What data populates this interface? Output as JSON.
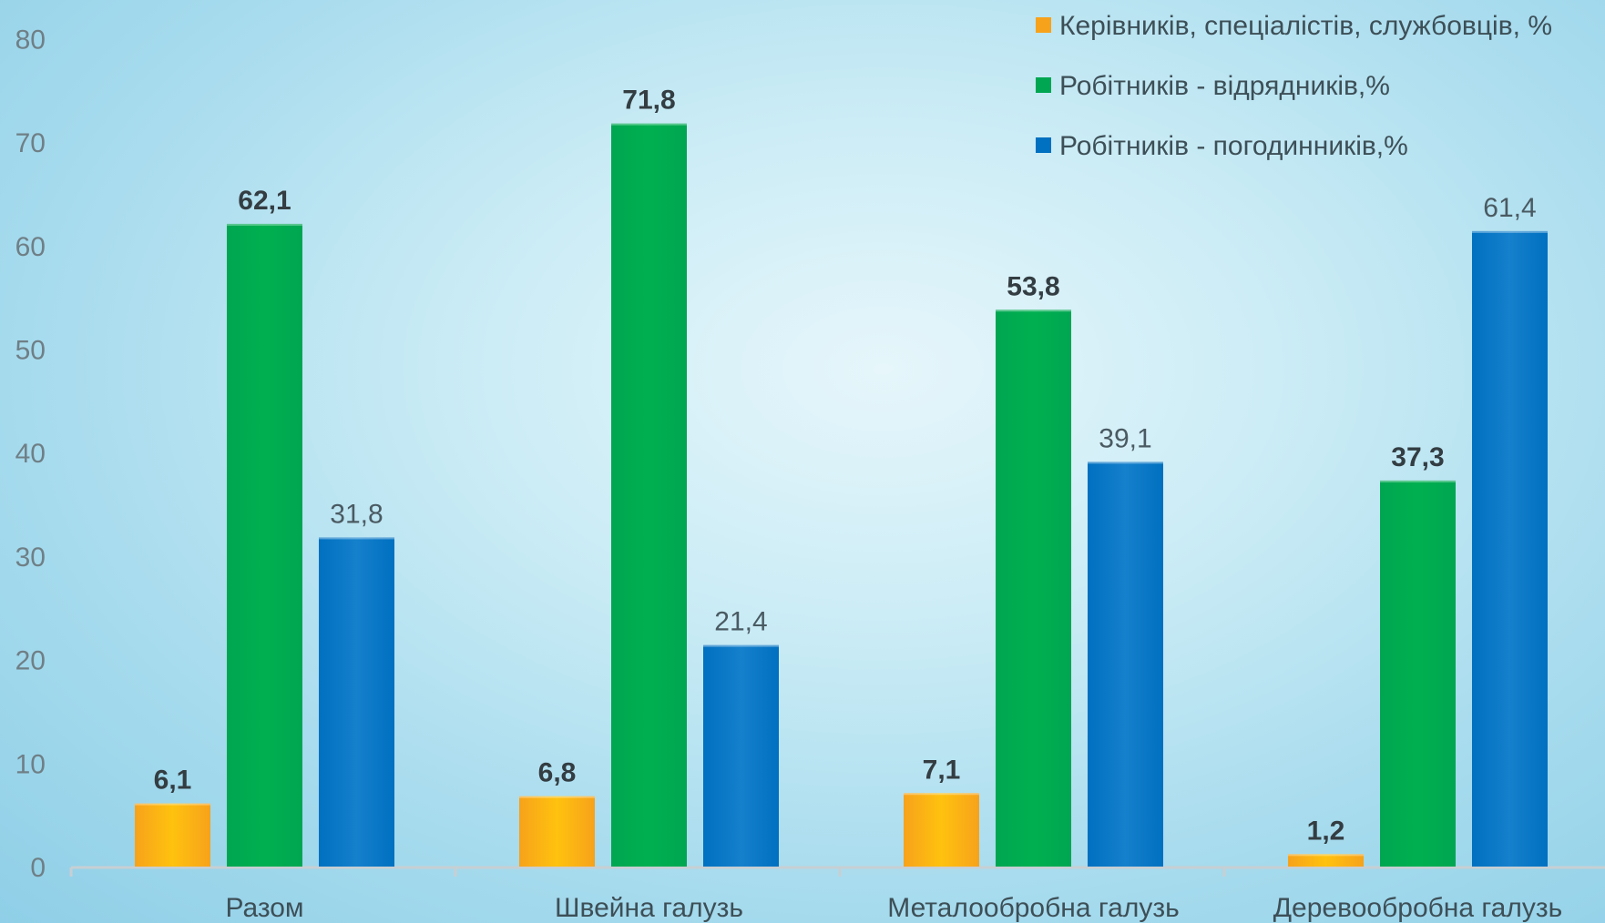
{
  "chart_data": {
    "type": "bar",
    "categories": [
      "Разом",
      "Швейна галузь",
      "Металообробна галузь",
      "Деревообробна галузь"
    ],
    "series": [
      {
        "name": "Керівників, спеціалістів, службовців, %",
        "values": [
          6.1,
          6.8,
          7.1,
          1.2
        ],
        "labels": [
          "6,1",
          "6,8",
          "7,1",
          "1,2"
        ],
        "color": "#f7a21b",
        "color_light": "#ffc20e",
        "label_bold": true
      },
      {
        "name": "Робітників - відрядників,%",
        "values": [
          62.1,
          71.8,
          53.8,
          37.3
        ],
        "labels": [
          "62,1",
          "71,8",
          "53,8",
          "37,3"
        ],
        "color": "#00a651",
        "color_light": "#00b050",
        "label_bold": true
      },
      {
        "name": "Робітників - погодинників,%",
        "values": [
          31.8,
          21.4,
          39.1,
          61.4
        ],
        "labels": [
          "31,8",
          "21,4",
          "39,1",
          "61,4"
        ],
        "color": "#0070c0",
        "color_light": "#1580cc",
        "label_bold": false
      }
    ],
    "yticks": [
      "0",
      "10",
      "20",
      "30",
      "40",
      "50",
      "60",
      "70",
      "80"
    ],
    "ylim": [
      0,
      80
    ],
    "grid": false,
    "legend_position": "top-right",
    "title": "",
    "xlabel": "",
    "ylabel": ""
  }
}
